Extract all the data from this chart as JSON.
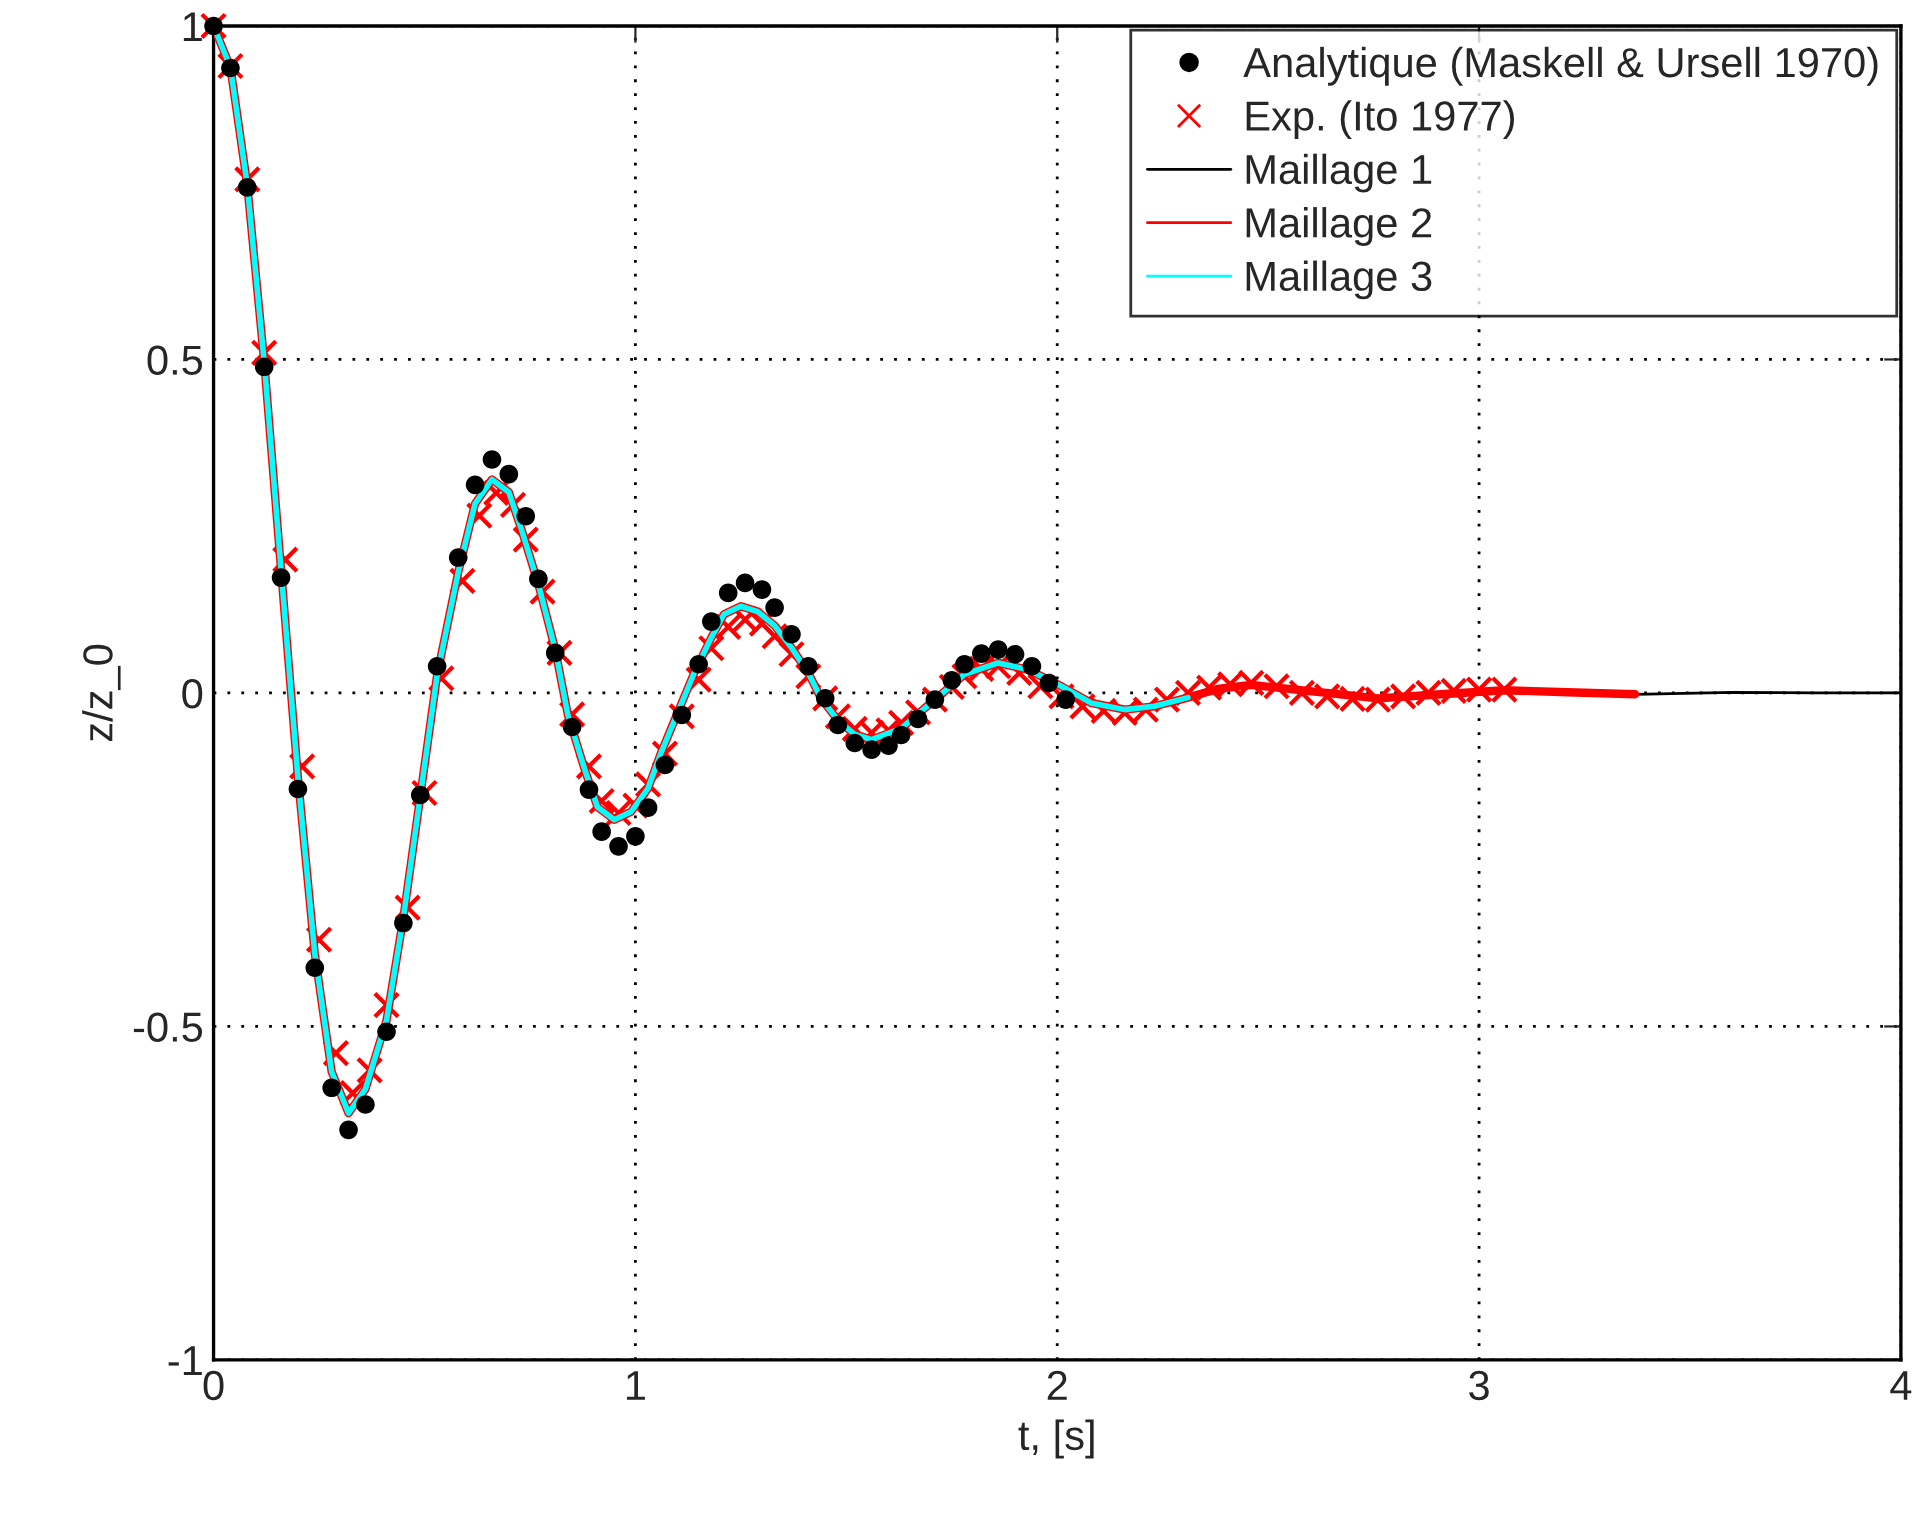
{
  "chart_data": {
    "type": "line",
    "xlabel": "t, [s]",
    "ylabel": "z/z_0",
    "xlim": [
      0,
      4
    ],
    "ylim": [
      -1,
      1
    ],
    "xticks": [
      0,
      1,
      2,
      3,
      4
    ],
    "yticks": [
      -1,
      -0.5,
      0,
      0.5,
      1
    ],
    "grid": true,
    "legend": "top right",
    "series": [
      {
        "name": "Analytique (Maskell & Ursell 1970)",
        "type": "scatter",
        "marker": "circle",
        "color": "#000000",
        "x": [
          0,
          0.04,
          0.08,
          0.12,
          0.16,
          0.2,
          0.24,
          0.28,
          0.32,
          0.36,
          0.41,
          0.45,
          0.49,
          0.53,
          0.58,
          0.62,
          0.66,
          0.7,
          0.74,
          0.77,
          0.81,
          0.85,
          0.89,
          0.92,
          0.96,
          1.0,
          1.03,
          1.07,
          1.11,
          1.15,
          1.18,
          1.22,
          1.26,
          1.3,
          1.33,
          1.37,
          1.41,
          1.45,
          1.48,
          1.52,
          1.56,
          1.6,
          1.63,
          1.67,
          1.71,
          1.75,
          1.78,
          1.82,
          1.86,
          1.9,
          1.94,
          1.98,
          2.02
        ],
        "values": [
          1,
          0.937,
          0.758,
          0.489,
          0.173,
          -0.144,
          -0.412,
          -0.592,
          -0.655,
          -0.617,
          -0.508,
          -0.345,
          -0.153,
          0.04,
          0.203,
          0.312,
          0.35,
          0.328,
          0.265,
          0.171,
          0.06,
          -0.051,
          -0.145,
          -0.208,
          -0.23,
          -0.215,
          -0.172,
          -0.108,
          -0.033,
          0.043,
          0.107,
          0.15,
          0.165,
          0.155,
          0.128,
          0.088,
          0.04,
          -0.008,
          -0.048,
          -0.075,
          -0.085,
          -0.079,
          -0.063,
          -0.039,
          -0.01,
          0.019,
          0.043,
          0.059,
          0.065,
          0.058,
          0.04,
          0.015,
          -0.01
        ]
      },
      {
        "name": "Exp. (Ito 1977)",
        "type": "scatter",
        "marker": "cross",
        "color": "#ff0000",
        "x": [
          0,
          0.04,
          0.08,
          0.12,
          0.17,
          0.21,
          0.25,
          0.29,
          0.33,
          0.37,
          0.41,
          0.46,
          0.5,
          0.54,
          0.59,
          0.63,
          0.67,
          0.71,
          0.74,
          0.78,
          0.82,
          0.85,
          0.89,
          0.92,
          0.96,
          1.0,
          1.03,
          1.07,
          1.11,
          1.15,
          1.18,
          1.22,
          1.26,
          1.3,
          1.33,
          1.37,
          1.41,
          1.45,
          1.48,
          1.52,
          1.56,
          1.6,
          1.63,
          1.67,
          1.71,
          1.75,
          1.78,
          1.82,
          1.86,
          1.91,
          1.96,
          2.01,
          2.06,
          2.11,
          2.16,
          2.21,
          2.26,
          2.31,
          2.36,
          2.41,
          2.46,
          2.52,
          2.58,
          2.64,
          2.7,
          2.76,
          2.82,
          2.88,
          2.94,
          3.0,
          3.06
        ],
        "values": [
          1,
          0.94,
          0.77,
          0.51,
          0.2,
          -0.11,
          -0.37,
          -0.54,
          -0.6,
          -0.566,
          -0.468,
          -0.322,
          -0.15,
          0.022,
          0.168,
          0.266,
          0.3,
          0.282,
          0.23,
          0.152,
          0.06,
          -0.032,
          -0.11,
          -0.162,
          -0.18,
          -0.169,
          -0.137,
          -0.091,
          -0.035,
          0.02,
          0.067,
          0.099,
          0.11,
          0.104,
          0.085,
          0.058,
          0.025,
          -0.008,
          -0.035,
          -0.054,
          -0.06,
          -0.056,
          -0.045,
          -0.029,
          -0.01,
          0.009,
          0.025,
          0.036,
          0.04,
          0.03,
          0.01,
          -0.005,
          -0.02,
          -0.027,
          -0.03,
          -0.025,
          -0.01,
          0,
          0.008,
          0.013,
          0.015,
          0.01,
          0,
          -0.005,
          -0.009,
          -0.01,
          -0.005,
          0,
          0.003,
          0.005,
          0.005
        ]
      },
      {
        "name": "Maillage 1",
        "color": "#000000",
        "x": [
          3.37,
          3.6,
          3.8,
          4.0
        ],
        "values": [
          -0.002,
          0.001,
          0,
          0
        ]
      },
      {
        "name": "Maillage 2",
        "color": "#ff0000",
        "x": [
          0,
          0.04,
          0.08,
          0.12,
          0.16,
          0.2,
          0.24,
          0.28,
          0.32,
          0.36,
          0.41,
          0.45,
          0.49,
          0.53,
          0.58,
          0.62,
          0.66,
          0.7,
          0.73,
          0.77,
          0.81,
          0.84,
          0.88,
          0.91,
          0.95,
          0.99,
          1.03,
          1.06,
          1.1,
          1.14,
          1.18,
          1.21,
          1.25,
          1.29,
          1.33,
          1.37,
          1.41,
          1.44,
          1.48,
          1.52,
          1.56,
          1.63,
          1.71,
          1.78,
          1.86,
          1.93,
          2.01,
          2.08,
          2.16,
          2.23,
          2.31,
          2.38,
          2.46,
          2.61,
          2.76,
          2.91,
          3.06,
          3.21,
          3.37
        ],
        "values": [
          1,
          0.938,
          0.761,
          0.497,
          0.185,
          -0.127,
          -0.391,
          -0.568,
          -0.63,
          -0.594,
          -0.491,
          -0.337,
          -0.155,
          0.027,
          0.181,
          0.284,
          0.32,
          0.301,
          0.245,
          0.163,
          0.065,
          -0.033,
          -0.115,
          -0.171,
          -0.19,
          -0.178,
          -0.143,
          -0.091,
          -0.03,
          0.031,
          0.083,
          0.118,
          0.13,
          0.122,
          0.101,
          0.068,
          0.03,
          -0.008,
          -0.041,
          -0.062,
          -0.07,
          -0.053,
          -0.01,
          0.028,
          0.045,
          0.035,
          0.01,
          -0.015,
          -0.025,
          -0.02,
          -0.007,
          0.006,
          0.012,
          0.002,
          -0.008,
          -0.002,
          0.004,
          0.001,
          -0.002
        ]
      },
      {
        "name": "Maillage 3",
        "color": "#00ffff",
        "x": [
          0,
          0.04,
          0.08,
          0.12,
          0.16,
          0.2,
          0.24,
          0.28,
          0.32,
          0.36,
          0.41,
          0.45,
          0.49,
          0.53,
          0.58,
          0.62,
          0.66,
          0.7,
          0.73,
          0.77,
          0.81,
          0.84,
          0.88,
          0.91,
          0.95,
          0.99,
          1.03,
          1.06,
          1.1,
          1.14,
          1.18,
          1.21,
          1.25,
          1.29,
          1.33,
          1.37,
          1.41,
          1.44,
          1.48,
          1.52,
          1.56,
          1.63,
          1.71,
          1.78,
          1.86,
          1.93,
          2.01,
          2.08,
          2.16,
          2.23,
          2.31
        ],
        "values": [
          1,
          0.938,
          0.761,
          0.497,
          0.185,
          -0.127,
          -0.391,
          -0.568,
          -0.63,
          -0.594,
          -0.491,
          -0.337,
          -0.155,
          0.027,
          0.181,
          0.284,
          0.32,
          0.301,
          0.245,
          0.163,
          0.065,
          -0.033,
          -0.115,
          -0.171,
          -0.19,
          -0.178,
          -0.143,
          -0.091,
          -0.03,
          0.031,
          0.083,
          0.118,
          0.13,
          0.122,
          0.101,
          0.068,
          0.03,
          -0.008,
          -0.041,
          -0.062,
          -0.07,
          -0.053,
          -0.01,
          0.028,
          0.045,
          0.035,
          0.01,
          -0.015,
          -0.025,
          -0.02,
          -0.007
        ]
      }
    ]
  }
}
